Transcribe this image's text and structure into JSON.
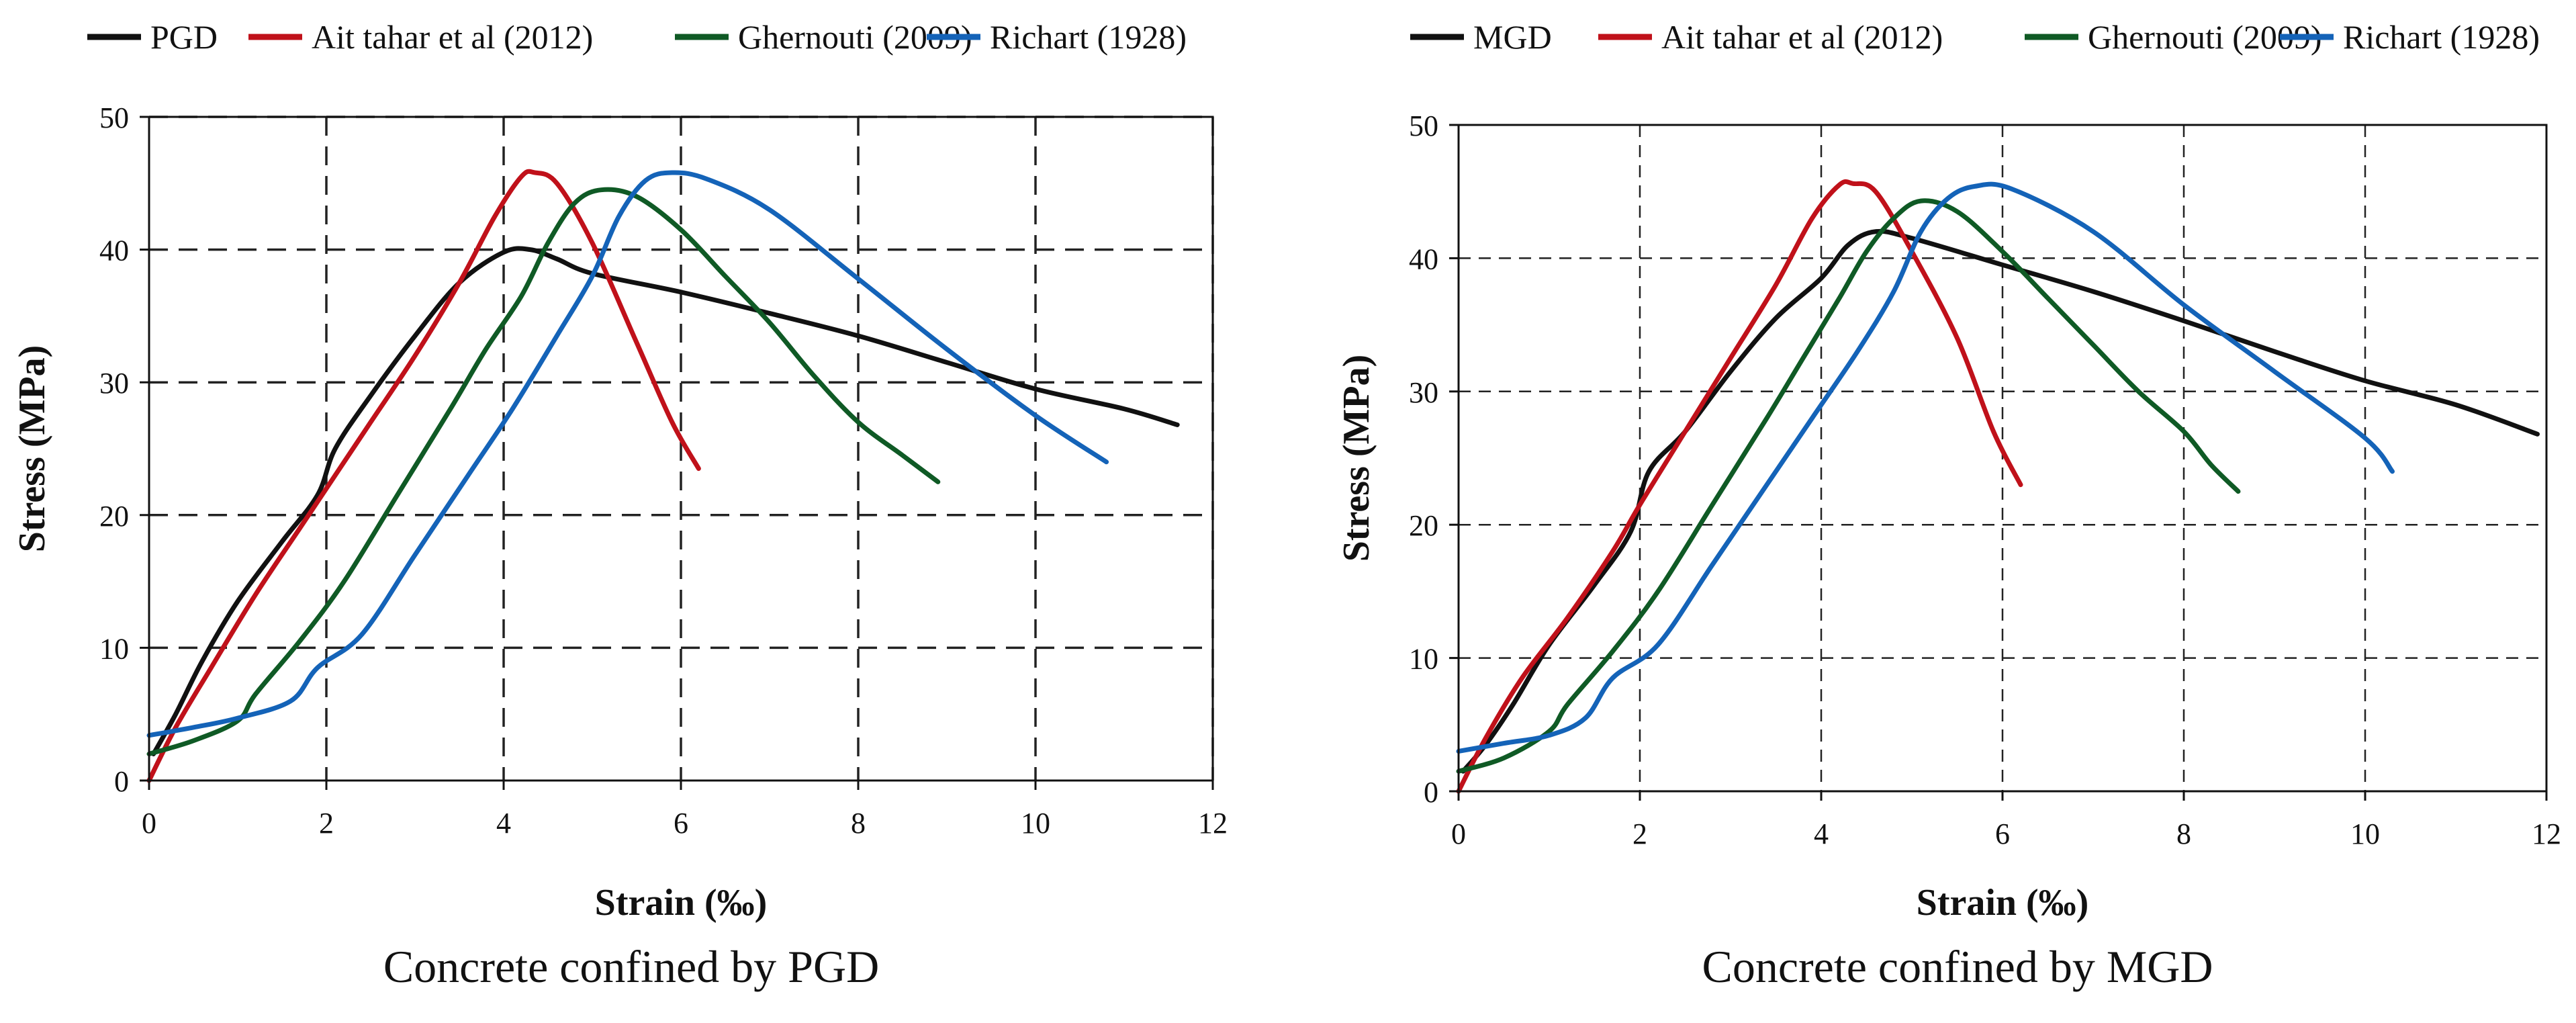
{
  "chart_data": [
    {
      "type": "line",
      "caption": "Concrete confined by PGD",
      "xlabel": "Strain (‰)",
      "ylabel": "Stress (MPa)",
      "xlim": [
        0,
        12
      ],
      "ylim": [
        0,
        50
      ],
      "xticks": [
        "0",
        "2",
        "4",
        "6",
        "8",
        "10",
        "12"
      ],
      "yticks": [
        "0",
        "10",
        "20",
        "30",
        "40",
        "50"
      ],
      "grid": "dashed",
      "legend_position": "top",
      "series": [
        {
          "name": "PGD",
          "color": "#111111",
          "points": [
            [
              0.05,
              2
            ],
            [
              0.3,
              5
            ],
            [
              0.6,
              9
            ],
            [
              1.0,
              13.5
            ],
            [
              1.5,
              18
            ],
            [
              1.9,
              21.5
            ],
            [
              2.1,
              25
            ],
            [
              2.5,
              29
            ],
            [
              3.0,
              33.5
            ],
            [
              3.5,
              37.5
            ],
            [
              4.0,
              39.8
            ],
            [
              4.3,
              40
            ],
            [
              4.6,
              39.3
            ],
            [
              5.0,
              38.2
            ],
            [
              6.0,
              36.8
            ],
            [
              7.0,
              35.2
            ],
            [
              8.0,
              33.5
            ],
            [
              9.0,
              31.5
            ],
            [
              10.0,
              29.5
            ],
            [
              11.0,
              28
            ],
            [
              11.6,
              26.8
            ]
          ]
        },
        {
          "name": "Ait tahar et al (2012)",
          "color": "#c0111a",
          "points": [
            [
              0.0,
              0
            ],
            [
              0.3,
              4
            ],
            [
              0.7,
              8.5
            ],
            [
              1.2,
              14
            ],
            [
              1.7,
              19
            ],
            [
              2.0,
              22
            ],
            [
              2.5,
              27
            ],
            [
              3.0,
              32
            ],
            [
              3.5,
              37.5
            ],
            [
              3.9,
              42.5
            ],
            [
              4.2,
              45.5
            ],
            [
              4.35,
              45.8
            ],
            [
              4.6,
              45
            ],
            [
              5.0,
              40.5
            ],
            [
              5.5,
              33
            ],
            [
              5.9,
              27
            ],
            [
              6.2,
              23.5
            ]
          ]
        },
        {
          "name": "Ghernouti (2009)",
          "color": "#0f5a25",
          "points": [
            [
              0.0,
              2
            ],
            [
              0.5,
              3
            ],
            [
              1.0,
              4.5
            ],
            [
              1.2,
              6.5
            ],
            [
              1.7,
              10.5
            ],
            [
              2.2,
              15
            ],
            [
              2.8,
              21.5
            ],
            [
              3.4,
              28
            ],
            [
              3.8,
              32.5
            ],
            [
              4.2,
              36.5
            ],
            [
              4.5,
              40.5
            ],
            [
              4.8,
              43.5
            ],
            [
              5.1,
              44.5
            ],
            [
              5.5,
              44
            ],
            [
              6.0,
              41.5
            ],
            [
              6.5,
              38
            ],
            [
              7.0,
              34.5
            ],
            [
              7.5,
              30.5
            ],
            [
              8.0,
              27
            ],
            [
              8.5,
              24.5
            ],
            [
              8.9,
              22.5
            ]
          ]
        },
        {
          "name": "Richart (1928)",
          "color": "#1463b8",
          "points": [
            [
              0.0,
              3.4
            ],
            [
              0.5,
              4
            ],
            [
              1.0,
              4.7
            ],
            [
              1.6,
              6
            ],
            [
              1.9,
              8.5
            ],
            [
              2.4,
              11
            ],
            [
              3.0,
              17
            ],
            [
              3.6,
              23
            ],
            [
              4.1,
              28
            ],
            [
              4.6,
              33.5
            ],
            [
              5.0,
              38
            ],
            [
              5.3,
              42.5
            ],
            [
              5.6,
              45.2
            ],
            [
              5.9,
              45.8
            ],
            [
              6.3,
              45.3
            ],
            [
              7.0,
              43
            ],
            [
              8.0,
              37.8
            ],
            [
              9.0,
              32.5
            ],
            [
              10.0,
              27.5
            ],
            [
              10.8,
              24
            ]
          ]
        }
      ]
    },
    {
      "type": "line",
      "caption": "Concrete confined by MGD",
      "xlabel": "Strain (‰)",
      "ylabel": "Stress (MPa)",
      "xlim": [
        0,
        12
      ],
      "ylim": [
        0,
        50
      ],
      "xticks": [
        "0",
        "2",
        "4",
        "6",
        "8",
        "10",
        "12"
      ],
      "yticks": [
        "0",
        "10",
        "20",
        "30",
        "40",
        "50"
      ],
      "grid": "dashed",
      "legend_position": "top",
      "series": [
        {
          "name": "MGD",
          "color": "#111111",
          "points": [
            [
              0.05,
              1.5
            ],
            [
              0.3,
              3.5
            ],
            [
              0.6,
              6.5
            ],
            [
              1.0,
              11
            ],
            [
              1.5,
              15.5
            ],
            [
              1.9,
              19.5
            ],
            [
              2.1,
              24
            ],
            [
              2.5,
              27
            ],
            [
              3.0,
              31.5
            ],
            [
              3.5,
              35.5
            ],
            [
              4.0,
              38.5
            ],
            [
              4.3,
              41
            ],
            [
              4.6,
              42
            ],
            [
              5.0,
              41.5
            ],
            [
              6.0,
              39.5
            ],
            [
              7.0,
              37.5
            ],
            [
              8.0,
              35.3
            ],
            [
              9.0,
              33
            ],
            [
              10.0,
              30.8
            ],
            [
              11.0,
              29
            ],
            [
              11.9,
              26.8
            ]
          ]
        },
        {
          "name": "Ait tahar et al (2012)",
          "color": "#c0111a",
          "points": [
            [
              0.0,
              0
            ],
            [
              0.3,
              4
            ],
            [
              0.7,
              8.5
            ],
            [
              1.2,
              13
            ],
            [
              1.7,
              18
            ],
            [
              2.0,
              21.5
            ],
            [
              2.5,
              27
            ],
            [
              3.0,
              32.5
            ],
            [
              3.5,
              38
            ],
            [
              3.9,
              43
            ],
            [
              4.2,
              45.5
            ],
            [
              4.35,
              45.6
            ],
            [
              4.6,
              45
            ],
            [
              5.0,
              40.5
            ],
            [
              5.5,
              34
            ],
            [
              5.9,
              27
            ],
            [
              6.2,
              23
            ]
          ]
        },
        {
          "name": "Ghernouti (2009)",
          "color": "#0f5a25",
          "points": [
            [
              0.0,
              1.5
            ],
            [
              0.5,
              2.5
            ],
            [
              1.0,
              4.5
            ],
            [
              1.2,
              6.5
            ],
            [
              1.7,
              10.5
            ],
            [
              2.2,
              15
            ],
            [
              2.8,
              21.5
            ],
            [
              3.4,
              28
            ],
            [
              3.8,
              32.5
            ],
            [
              4.2,
              37
            ],
            [
              4.5,
              40.5
            ],
            [
              4.8,
              43
            ],
            [
              5.1,
              44.3
            ],
            [
              5.5,
              43.5
            ],
            [
              6.0,
              40.5
            ],
            [
              6.5,
              37
            ],
            [
              7.0,
              33.5
            ],
            [
              7.5,
              30
            ],
            [
              8.0,
              27
            ],
            [
              8.3,
              24.5
            ],
            [
              8.6,
              22.5
            ]
          ]
        },
        {
          "name": "Richart (1928)",
          "color": "#1463b8",
          "points": [
            [
              0.0,
              3
            ],
            [
              0.5,
              3.6
            ],
            [
              1.0,
              4.2
            ],
            [
              1.4,
              5.5
            ],
            [
              1.7,
              8.5
            ],
            [
              2.2,
              11
            ],
            [
              2.8,
              17
            ],
            [
              3.4,
              23
            ],
            [
              3.9,
              28
            ],
            [
              4.4,
              33
            ],
            [
              4.8,
              37.5
            ],
            [
              5.1,
              42
            ],
            [
              5.4,
              44.5
            ],
            [
              5.7,
              45.4
            ],
            [
              6.1,
              45.2
            ],
            [
              7.0,
              42
            ],
            [
              8.0,
              36.5
            ],
            [
              9.0,
              31.5
            ],
            [
              10.0,
              26.5
            ],
            [
              10.3,
              24
            ]
          ]
        }
      ]
    }
  ]
}
